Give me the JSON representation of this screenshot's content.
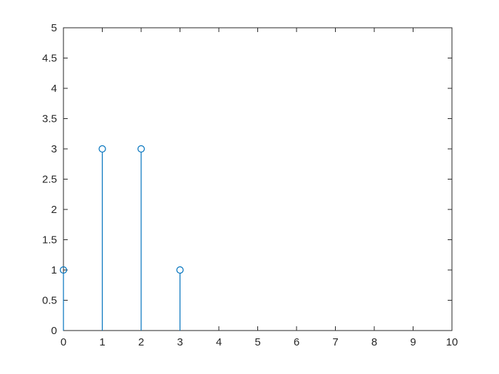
{
  "figure": {
    "background": "#ffffff",
    "axis_color": "#262626",
    "label_color": "#262626"
  },
  "chart_data": {
    "type": "stem",
    "x": [
      0,
      1,
      2,
      3
    ],
    "y": [
      1,
      3,
      3,
      1
    ],
    "series_color": "#0072BD",
    "marker": "open-circle",
    "marker_radius": 4.5,
    "title": "",
    "xlabel": "",
    "ylabel": "",
    "xlim": [
      0,
      10
    ],
    "ylim": [
      0,
      5
    ],
    "xticks": [
      0,
      1,
      2,
      3,
      4,
      5,
      6,
      7,
      8,
      9,
      10
    ],
    "xtick_labels": [
      "0",
      "1",
      "2",
      "3",
      "4",
      "5",
      "6",
      "7",
      "8",
      "9",
      "10"
    ],
    "yticks": [
      0,
      0.5,
      1,
      1.5,
      2,
      2.5,
      3,
      3.5,
      4,
      4.5,
      5
    ],
    "ytick_labels": [
      "0",
      "0.5",
      "1",
      "1.5",
      "2",
      "2.5",
      "3",
      "3.5",
      "4",
      "4.5",
      "5"
    ],
    "grid": false,
    "box": true,
    "tick_direction": "in",
    "legend": null
  }
}
